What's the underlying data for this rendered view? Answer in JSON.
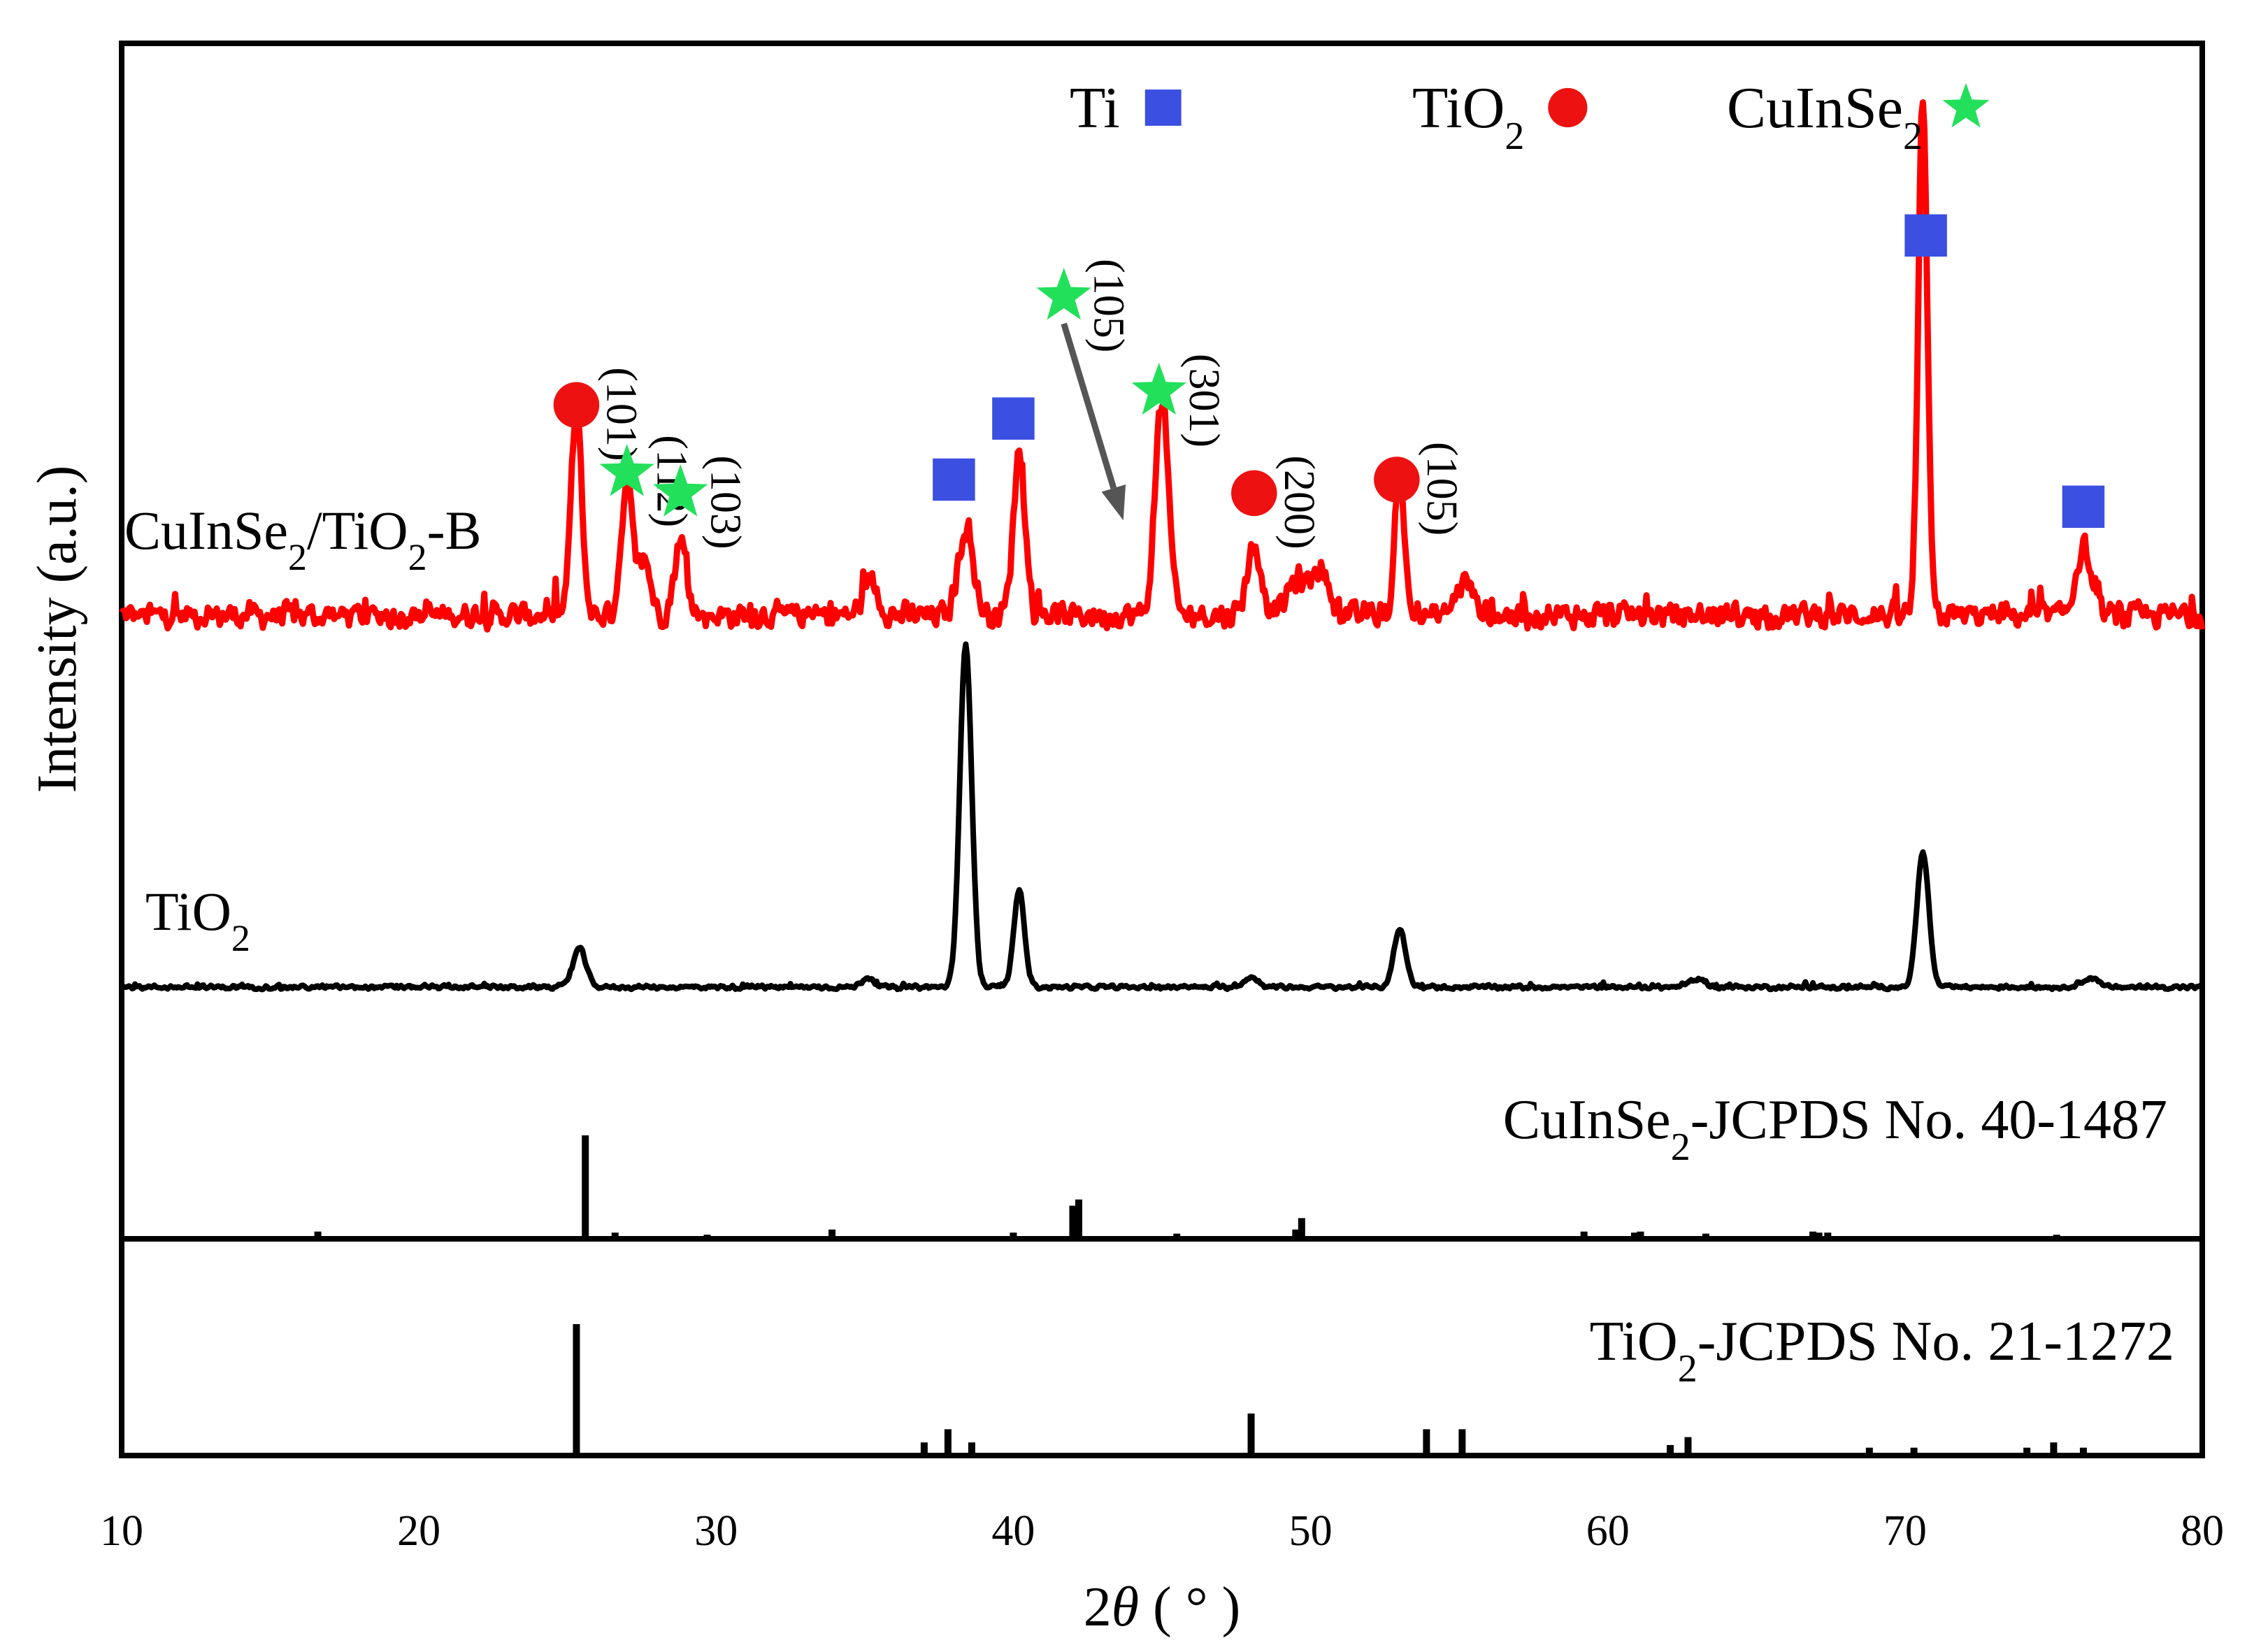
{
  "chart_data": {
    "type": "line",
    "title": "",
    "xlabel_prefix": "2",
    "xlabel_symbol": "θ",
    "xlabel_unit": "( ° )",
    "ylabel": "Intensity (a.u.)",
    "xlim": [
      10,
      80
    ],
    "x_ticks": [
      10,
      20,
      30,
      40,
      50,
      60,
      70,
      80
    ],
    "x_tick_labels": [
      "10",
      "20",
      "30",
      "40",
      "50",
      "60",
      "70",
      "80"
    ],
    "legend": [
      {
        "name": "Ti",
        "name_sub": "",
        "marker": "square",
        "color": "#3b4fe0"
      },
      {
        "name": "TiO",
        "name_sub": "2",
        "marker": "circle",
        "color": "#ee1111"
      },
      {
        "name": "CuInSe",
        "name_sub": "2",
        "marker": "star",
        "color": "#22e05a"
      }
    ],
    "series": [
      {
        "name": "CuInSe2/TiO2-B",
        "label_parts": [
          "CuInSe",
          "2",
          "/TiO",
          "2",
          "-B"
        ],
        "color": "#ff0000",
        "baseline": 8,
        "noise": 2.2,
        "peaks": [
          [
            25.3,
            30,
            0.18
          ],
          [
            27.0,
            19,
            0.2
          ],
          [
            27.6,
            8,
            0.2
          ],
          [
            28.8,
            11,
            0.2
          ],
          [
            35.2,
            5,
            0.25
          ],
          [
            38.4,
            13,
            0.25
          ],
          [
            40.2,
            24,
            0.2
          ],
          [
            45.0,
            32,
            0.22
          ],
          [
            48.1,
            10,
            0.25
          ],
          [
            49.5,
            5,
            0.3
          ],
          [
            50.3,
            7,
            0.3
          ],
          [
            53.0,
            22,
            0.15
          ],
          [
            55.2,
            5,
            0.3
          ],
          [
            70.6,
            76,
            0.15
          ],
          [
            76.0,
            10,
            0.25
          ]
        ]
      },
      {
        "name": "TiO2",
        "label_parts": [
          "TiO",
          "2"
        ],
        "color": "#000000",
        "baseline": 0,
        "noise": 0.5,
        "peaks": [
          [
            25.4,
            8,
            0.22
          ],
          [
            35.1,
            2,
            0.2
          ],
          [
            38.4,
            71,
            0.2
          ],
          [
            40.2,
            20,
            0.18
          ],
          [
            48.0,
            2,
            0.25
          ],
          [
            53.0,
            12,
            0.2
          ],
          [
            63.0,
            1.5,
            0.3
          ],
          [
            70.6,
            28,
            0.2
          ],
          [
            76.2,
            2,
            0.25
          ]
        ]
      }
    ],
    "references": [
      {
        "name": "CuInSe2-JCPDS No. 40-1487",
        "label_parts": [
          "CuInSe",
          "2",
          "-JCPDS No. 40-1487"
        ],
        "lines": [
          [
            16.6,
            7
          ],
          [
            25.6,
            100
          ],
          [
            26.6,
            6
          ],
          [
            29.7,
            4
          ],
          [
            33.9,
            9
          ],
          [
            40.0,
            6
          ],
          [
            42.0,
            32
          ],
          [
            42.2,
            38
          ],
          [
            45.5,
            5
          ],
          [
            49.5,
            9
          ],
          [
            49.7,
            20
          ],
          [
            59.2,
            7
          ],
          [
            60.9,
            6
          ],
          [
            61.1,
            7
          ],
          [
            63.3,
            5
          ],
          [
            66.9,
            7
          ],
          [
            67.1,
            6
          ],
          [
            67.4,
            6
          ],
          [
            75.1,
            4
          ]
        ]
      },
      {
        "name": "TiO2-JCPDS No. 21-1272",
        "label_parts": [
          "TiO",
          "2",
          "-JCPDS No. 21-1272"
        ],
        "lines": [
          [
            25.3,
            100
          ],
          [
            37.0,
            10
          ],
          [
            37.8,
            20
          ],
          [
            38.6,
            10
          ],
          [
            48.0,
            32
          ],
          [
            53.9,
            20
          ],
          [
            55.1,
            20
          ],
          [
            62.1,
            8
          ],
          [
            62.7,
            14
          ],
          [
            68.8,
            6
          ],
          [
            70.3,
            6
          ],
          [
            74.1,
            6
          ],
          [
            75.0,
            10
          ],
          [
            76.0,
            6
          ]
        ]
      }
    ],
    "annotations": [
      {
        "phase": "TiO2",
        "marker": "circle",
        "x": 25.3,
        "level": 31,
        "hkl": "(101)"
      },
      {
        "phase": "CuInSe2",
        "marker": "star",
        "x": 27.0,
        "level": 21,
        "hkl": "(112)"
      },
      {
        "phase": "CuInSe2",
        "marker": "star",
        "x": 28.8,
        "level": 18,
        "hkl": "(103)"
      },
      {
        "phase": "Ti",
        "marker": "square",
        "x": 38.0,
        "level": 20,
        "hkl": ""
      },
      {
        "phase": "Ti",
        "marker": "square",
        "x": 40.0,
        "level": 29,
        "hkl": ""
      },
      {
        "phase": "CuInSe2",
        "marker": "star",
        "x": 41.7,
        "level": 47,
        "hkl": "(105)"
      },
      {
        "phase": "CuInSe2",
        "marker": "star",
        "x": 44.9,
        "level": 33,
        "hkl": "(301)"
      },
      {
        "phase": "TiO2",
        "marker": "circle",
        "x": 48.1,
        "level": 18,
        "hkl": "(200)"
      },
      {
        "phase": "TiO2",
        "marker": "circle",
        "x": 52.9,
        "level": 20,
        "hkl": "(105)"
      },
      {
        "phase": "Ti",
        "marker": "square",
        "x": 70.7,
        "level": 56,
        "hkl": ""
      },
      {
        "phase": "Ti",
        "marker": "square",
        "x": 76.0,
        "level": 16,
        "hkl": ""
      }
    ],
    "arrow": {
      "from": [
        41.7,
        43
      ],
      "to": [
        43.7,
        14
      ]
    }
  }
}
